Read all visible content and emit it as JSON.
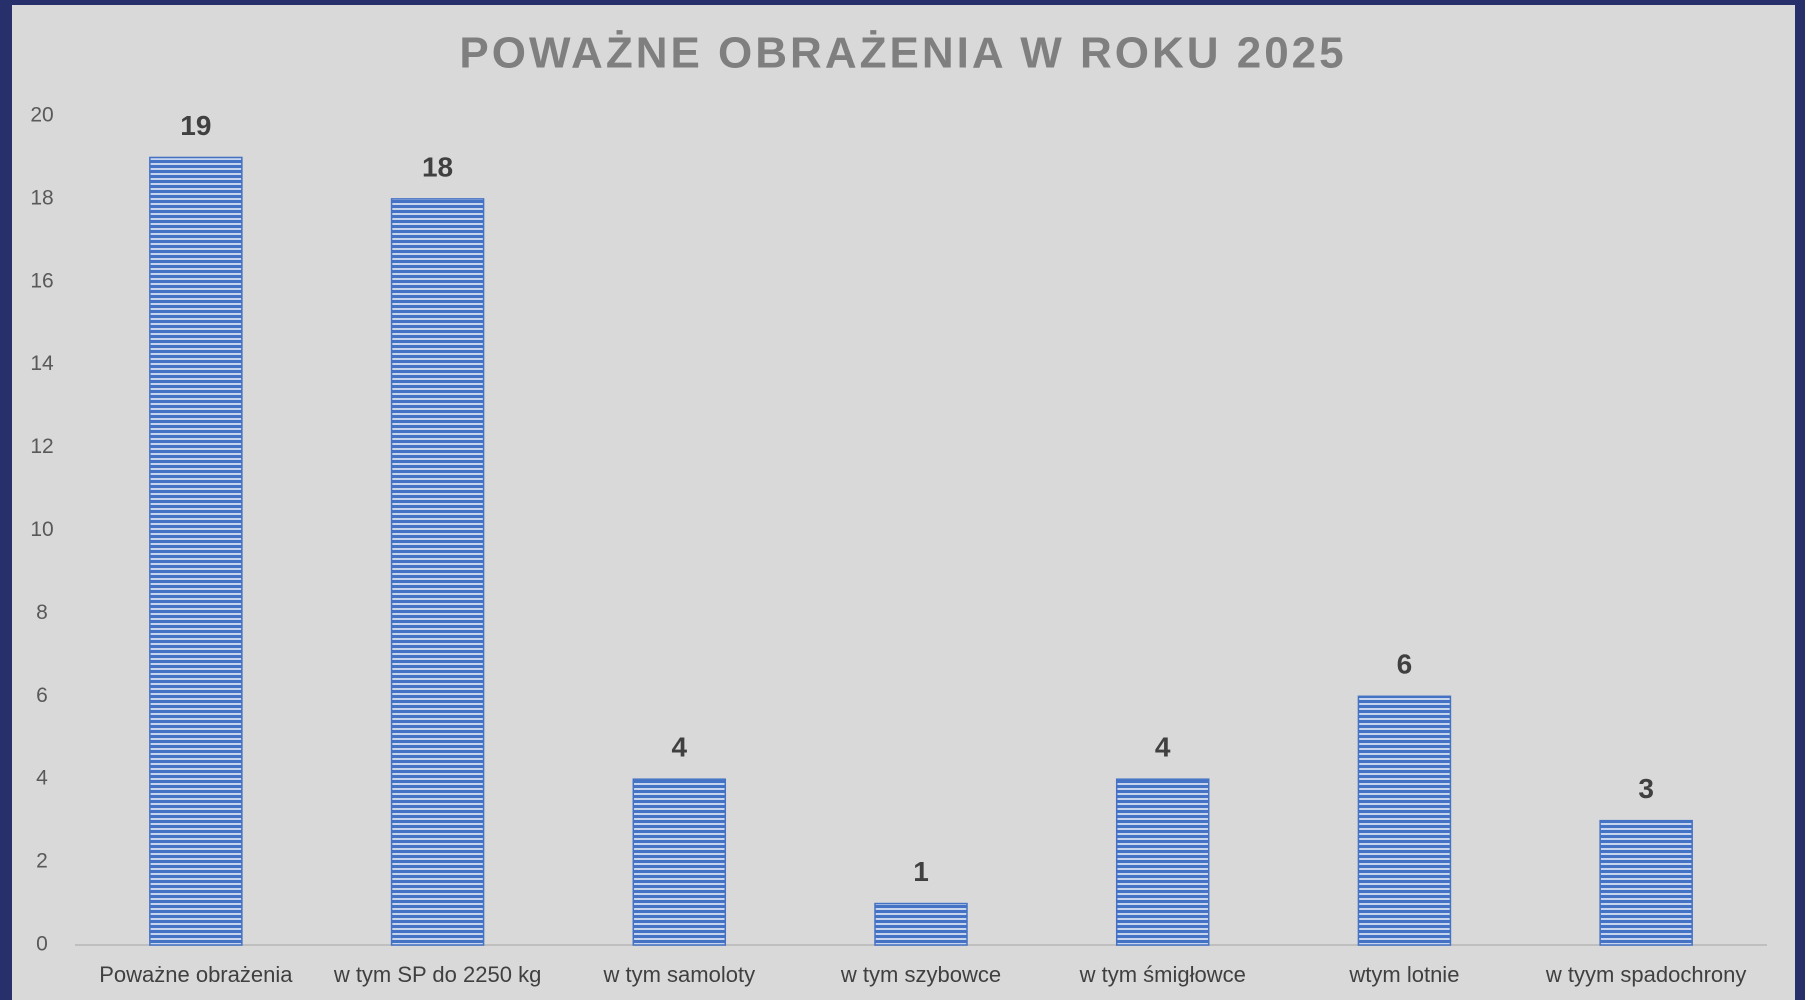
{
  "chart_data": {
    "type": "bar",
    "title": "POWAŻNE OBRAŻENIA W ROKU 2025",
    "categories": [
      "Poważne obrażenia",
      "w tym SP do 2250 kg",
      "w tym samoloty",
      "w tym szybowce",
      "w tym śmigłowce",
      "wtym lotnie",
      "w tyym spadochrony"
    ],
    "values": [
      19,
      18,
      4,
      1,
      4,
      6,
      3
    ],
    "color": "#4472c4",
    "ylim": [
      0,
      20
    ],
    "yticks": [
      0,
      2,
      4,
      6,
      8,
      10,
      12,
      14,
      16,
      18,
      20
    ],
    "grid": false
  }
}
